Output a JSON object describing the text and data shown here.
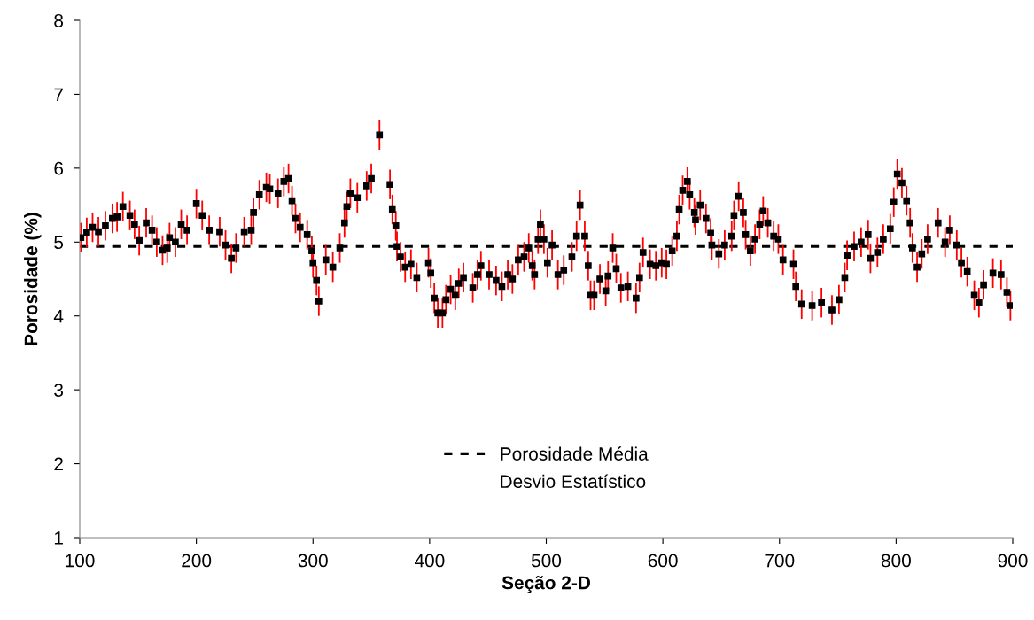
{
  "chart_data": {
    "type": "scatter",
    "xlabel": "Seção 2-D",
    "ylabel": "Porosidade (%)",
    "xlim": [
      100,
      900
    ],
    "xticks": [
      100,
      200,
      300,
      400,
      500,
      600,
      700,
      800,
      900
    ],
    "ylim": [
      1,
      8
    ],
    "yticks": [
      1,
      2,
      3,
      4,
      5,
      6,
      7,
      8
    ],
    "grid": false,
    "legend": "bottom",
    "marker": "square",
    "series": [
      {
        "color": "#000000",
        "x": [
          101,
          106,
          111,
          116,
          122,
          128,
          132,
          137,
          143,
          147,
          151,
          157,
          162,
          166,
          171,
          175,
          177,
          182,
          187,
          192,
          200,
          205,
          211,
          220,
          225,
          230,
          234,
          241,
          247,
          249,
          254,
          260,
          263,
          270,
          275,
          279,
          282,
          285,
          289,
          295,
          299,
          300,
          303,
          305,
          311,
          317,
          323,
          327,
          329,
          332,
          338,
          346,
          350,
          357,
          366,
          368,
          371,
          372,
          375,
          379,
          384,
          389,
          399,
          401,
          404,
          407,
          411,
          414,
          418,
          422,
          425,
          429,
          437,
          441,
          444,
          451,
          457,
          462,
          467,
          471,
          476,
          481,
          485,
          488,
          490,
          493,
          495,
          498,
          501,
          505,
          510,
          515,
          522,
          526,
          529,
          533,
          536,
          538,
          541,
          546,
          551,
          553,
          557,
          560,
          564,
          570,
          577,
          580,
          583,
          589,
          594,
          599,
          603,
          608,
          612,
          614,
          617,
          621,
          623,
          627,
          628,
          632,
          637,
          641,
          642,
          648,
          653,
          659,
          661,
          665,
          669,
          671,
          675,
          679,
          683,
          686,
          690,
          695,
          699,
          703,
          712,
          714,
          719,
          728,
          736,
          745,
          751,
          756,
          758,
          764,
          770,
          776,
          778,
          784,
          789,
          795,
          798,
          801,
          805,
          809,
          812,
          814,
          818,
          822,
          827,
          836,
          842,
          846,
          852,
          856,
          861,
          867,
          871,
          875,
          883,
          890,
          895,
          898
        ],
        "values": [
          5.06,
          5.13,
          5.2,
          5.14,
          5.22,
          5.32,
          5.34,
          5.48,
          5.36,
          5.24,
          5.02,
          5.26,
          5.16,
          5.0,
          4.89,
          4.92,
          5.06,
          5.0,
          5.24,
          5.16,
          5.52,
          5.36,
          5.16,
          5.14,
          4.96,
          4.78,
          4.92,
          5.14,
          5.16,
          5.4,
          5.64,
          5.74,
          5.72,
          5.66,
          5.82,
          5.86,
          5.56,
          5.32,
          5.2,
          5.1,
          4.88,
          4.72,
          4.48,
          4.2,
          4.76,
          4.66,
          4.92,
          5.26,
          5.48,
          5.66,
          5.6,
          5.76,
          5.86,
          6.45,
          5.78,
          5.44,
          5.22,
          4.94,
          4.8,
          4.66,
          4.7,
          4.52,
          4.72,
          4.58,
          4.24,
          4.04,
          4.04,
          4.22,
          4.36,
          4.28,
          4.44,
          4.52,
          4.38,
          4.56,
          4.68,
          4.56,
          4.48,
          4.4,
          4.56,
          4.5,
          4.76,
          4.8,
          4.92,
          4.68,
          4.56,
          5.04,
          5.24,
          5.04,
          4.72,
          4.96,
          4.56,
          4.62,
          4.8,
          5.08,
          5.5,
          5.08,
          4.68,
          4.28,
          4.28,
          4.5,
          4.34,
          4.54,
          4.92,
          4.64,
          4.38,
          4.4,
          4.24,
          4.52,
          4.86,
          4.7,
          4.68,
          4.72,
          4.7,
          4.88,
          5.08,
          5.44,
          5.7,
          5.82,
          5.64,
          5.4,
          5.3,
          5.5,
          5.32,
          5.12,
          4.96,
          4.84,
          4.96,
          5.08,
          5.36,
          5.62,
          5.4,
          5.1,
          4.88,
          5.04,
          5.24,
          5.42,
          5.26,
          5.08,
          5.04,
          4.76,
          4.7,
          4.4,
          4.16,
          4.14,
          4.18,
          4.08,
          4.22,
          4.52,
          4.82,
          4.94,
          5.0,
          5.1,
          4.78,
          4.86,
          5.04,
          5.18,
          5.54,
          5.92,
          5.8,
          5.56,
          5.26,
          4.92,
          4.66,
          4.84,
          5.04,
          5.26,
          5.0,
          5.16,
          4.96,
          4.72,
          4.6,
          4.28,
          4.18,
          4.42,
          4.58,
          4.56,
          4.32,
          4.14
        ],
        "errors": [
          0.2,
          0.2,
          0.2,
          0.2,
          0.2,
          0.2,
          0.2,
          0.2,
          0.2,
          0.2,
          0.2,
          0.2,
          0.2,
          0.2,
          0.2,
          0.2,
          0.2,
          0.2,
          0.2,
          0.2,
          0.2,
          0.2,
          0.2,
          0.2,
          0.2,
          0.2,
          0.2,
          0.2,
          0.2,
          0.2,
          0.2,
          0.2,
          0.2,
          0.2,
          0.2,
          0.2,
          0.2,
          0.2,
          0.2,
          0.2,
          0.2,
          0.2,
          0.2,
          0.2,
          0.2,
          0.2,
          0.2,
          0.2,
          0.2,
          0.2,
          0.2,
          0.2,
          0.2,
          0.2,
          0.2,
          0.2,
          0.2,
          0.2,
          0.2,
          0.2,
          0.2,
          0.2,
          0.2,
          0.2,
          0.2,
          0.2,
          0.2,
          0.2,
          0.2,
          0.2,
          0.2,
          0.2,
          0.2,
          0.2,
          0.2,
          0.2,
          0.2,
          0.2,
          0.2,
          0.2,
          0.2,
          0.2,
          0.2,
          0.2,
          0.2,
          0.2,
          0.2,
          0.2,
          0.2,
          0.2,
          0.2,
          0.2,
          0.2,
          0.2,
          0.2,
          0.2,
          0.2,
          0.2,
          0.2,
          0.2,
          0.2,
          0.2,
          0.2,
          0.2,
          0.2,
          0.2,
          0.2,
          0.2,
          0.2,
          0.2,
          0.2,
          0.2,
          0.2,
          0.2,
          0.2,
          0.2,
          0.2,
          0.2,
          0.2,
          0.2,
          0.2,
          0.2,
          0.2,
          0.2,
          0.2,
          0.2,
          0.2,
          0.2,
          0.2,
          0.2,
          0.2,
          0.2,
          0.2,
          0.2,
          0.2,
          0.2,
          0.2,
          0.2,
          0.2,
          0.2,
          0.2,
          0.2,
          0.2,
          0.2,
          0.2,
          0.2,
          0.2,
          0.2,
          0.2,
          0.2,
          0.2,
          0.2,
          0.2,
          0.2,
          0.2,
          0.2,
          0.2,
          0.2,
          0.2,
          0.2,
          0.2,
          0.2,
          0.2,
          0.2,
          0.2,
          0.2,
          0.2,
          0.2,
          0.2,
          0.2,
          0.2,
          0.2,
          0.2,
          0.2,
          0.2,
          0.2,
          0.2,
          0.2
        ]
      }
    ],
    "annotations": [
      "Desvio Estatístico"
    ],
    "ref_lines": [
      {
        "axis": "y",
        "value": 4.94,
        "label": "Porosidade Média",
        "color": "#000000",
        "line_style": "dashed"
      }
    ]
  }
}
